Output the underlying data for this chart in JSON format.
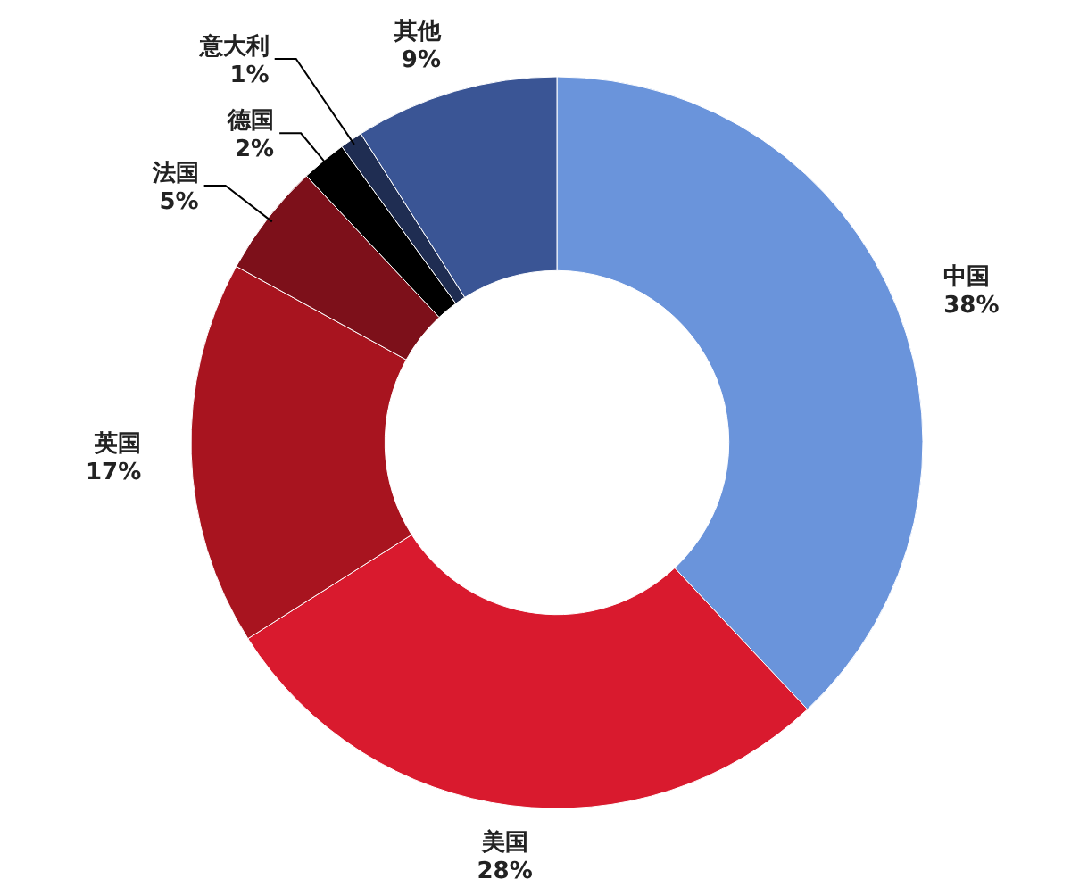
{
  "chart_data": {
    "type": "donut",
    "categories": [
      "中国",
      "美国",
      "英国",
      "法国",
      "德国",
      "意大利",
      "其他"
    ],
    "values": [
      38,
      28,
      17,
      5,
      2,
      1,
      9
    ],
    "colors": [
      "#6a94db",
      "#d91a2e",
      "#a8141f",
      "#7d101a",
      "#000000",
      "#1f2d52",
      "#3a5595"
    ],
    "value_labels": [
      "38%",
      "28%",
      "17%",
      "5%",
      "2%",
      "1%",
      "9%"
    ],
    "legend": false
  }
}
